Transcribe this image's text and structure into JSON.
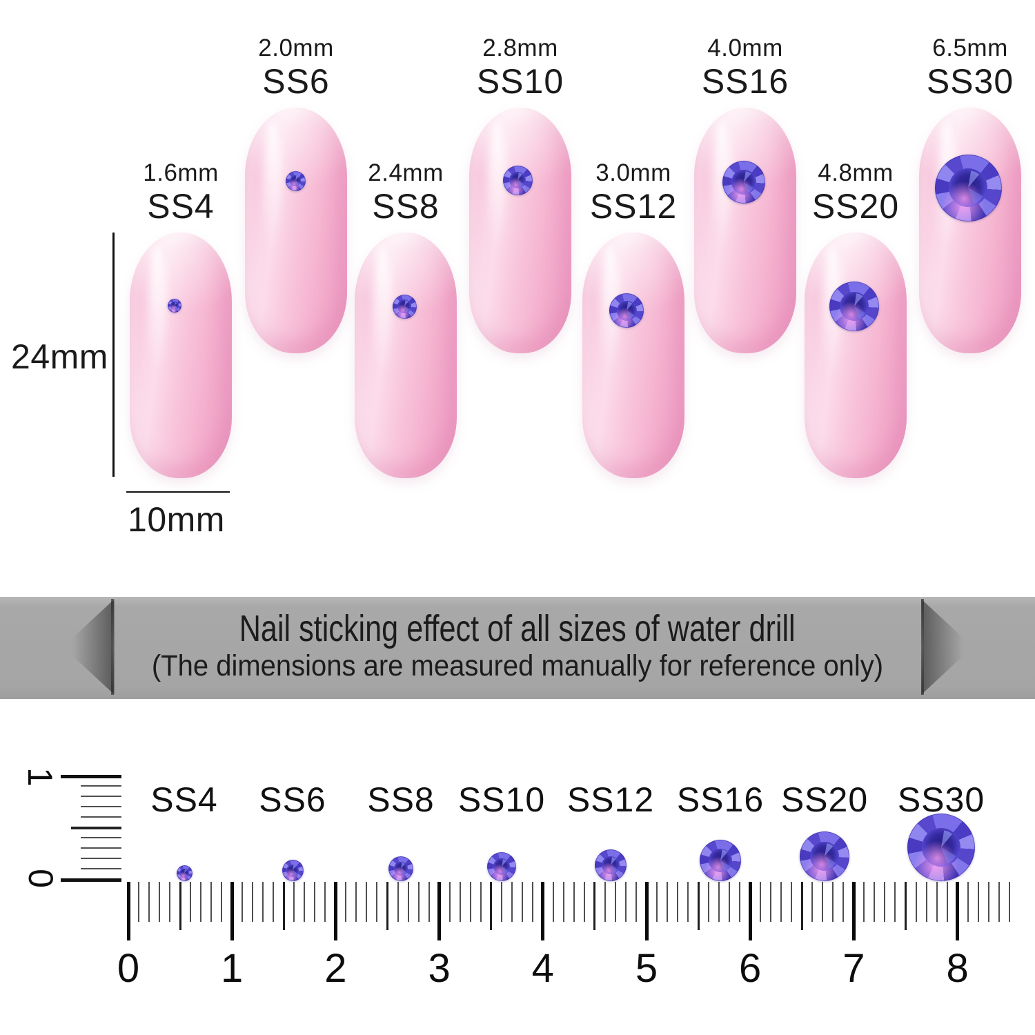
{
  "banner": {
    "line1": "Nail sticking effect of all sizes of water drill",
    "line2": "(The dimensions are measured manually for reference only)"
  },
  "dimensions": {
    "nail_height": "24mm",
    "nail_width": "10mm"
  },
  "nails": [
    {
      "size": "1.6mm",
      "name": "SS4"
    },
    {
      "size": "2.0mm",
      "name": "SS6"
    },
    {
      "size": "2.4mm",
      "name": "SS8"
    },
    {
      "size": "2.8mm",
      "name": "SS10"
    },
    {
      "size": "3.0mm",
      "name": "SS12"
    },
    {
      "size": "4.0mm",
      "name": "SS16"
    },
    {
      "size": "4.8mm",
      "name": "SS20"
    },
    {
      "size": "6.5mm",
      "name": "SS30"
    }
  ],
  "ruler": {
    "numbers": [
      "0",
      "1",
      "2",
      "3",
      "4",
      "5",
      "6",
      "7",
      "8"
    ],
    "vertical_numbers": [
      "1",
      "0"
    ]
  },
  "colors": {
    "gem_violet": "#5143cf",
    "gem_pink_glint": "#f0a0ea",
    "nail_pink": "#f8c3da",
    "banner_gray": "#a6a6a6",
    "text_dark": "#1a1a1a"
  }
}
